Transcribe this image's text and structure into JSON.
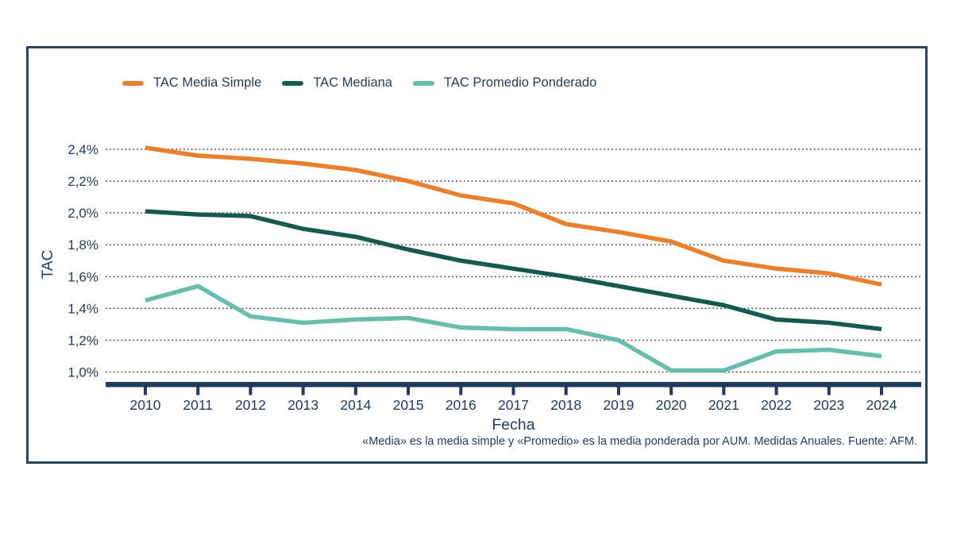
{
  "footnote": "«Media» es la media simple y «Promedio» es la media ponderada por AUM. Medidas Anuales. Fuente: AFM.",
  "appearance": {
    "text_color": "#1E3A5E",
    "axis_color": "#1F3A5C",
    "gridline_color": "#37424D",
    "border_color": "#2B4560",
    "background": "#FFFFFF"
  },
  "chart_data": {
    "type": "line",
    "title": "",
    "xlabel": "Fecha",
    "ylabel": "TAC",
    "legend_position": "top",
    "grid": "dotted-horizontal",
    "ylim": [
      1.0,
      2.4
    ],
    "yticks": [
      2.4,
      2.2,
      2.0,
      1.8,
      1.6,
      1.4,
      1.2,
      1.0
    ],
    "ytick_labels": [
      "2,4%",
      "2,2%",
      "2,0%",
      "1,8%",
      "1,6%",
      "1,4%",
      "1,2%",
      "1,0%"
    ],
    "categories": [
      2010,
      2011,
      2012,
      2013,
      2014,
      2015,
      2016,
      2017,
      2018,
      2019,
      2020,
      2021,
      2022,
      2023,
      2024
    ],
    "series": [
      {
        "name": "TAC Media Simple",
        "color": "#E8802E",
        "values": [
          2.41,
          2.36,
          2.34,
          2.31,
          2.27,
          2.2,
          2.11,
          2.06,
          1.93,
          1.88,
          1.82,
          1.7,
          1.65,
          1.62,
          1.55
        ]
      },
      {
        "name": "TAC Mediana",
        "color": "#16594F",
        "values": [
          2.01,
          1.99,
          1.98,
          1.9,
          1.85,
          1.77,
          1.7,
          1.65,
          1.6,
          1.54,
          1.48,
          1.42,
          1.33,
          1.31,
          1.27
        ]
      },
      {
        "name": "TAC Promedio Ponderado",
        "color": "#68BCAD",
        "values": [
          1.45,
          1.54,
          1.35,
          1.31,
          1.33,
          1.34,
          1.28,
          1.27,
          1.27,
          1.2,
          1.01,
          1.01,
          1.13,
          1.14,
          1.1
        ]
      }
    ]
  }
}
